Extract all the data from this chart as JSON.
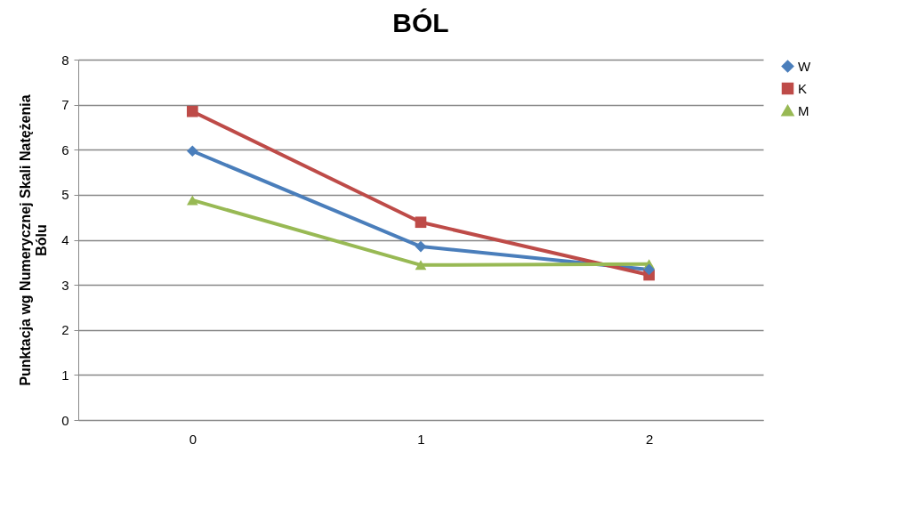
{
  "chart_data": {
    "type": "line",
    "title": "BÓL",
    "ylabel": "Punktacja wg Numerycznej Skali Natężenia Bólu",
    "categories": [
      "0",
      "1",
      "2"
    ],
    "series": [
      {
        "name": "W",
        "color": "#4a7ebb",
        "marker": "diamond",
        "values": [
          5.97,
          3.85,
          3.34
        ]
      },
      {
        "name": "K",
        "color": "#be4b48",
        "marker": "square",
        "values": [
          6.85,
          4.39,
          3.22
        ]
      },
      {
        "name": "M",
        "color": "#98b954",
        "marker": "triangle",
        "values": [
          4.88,
          3.44,
          3.46
        ]
      }
    ],
    "ylim": [
      0,
      8
    ],
    "yticks": [
      0,
      1,
      2,
      3,
      4,
      5,
      6,
      7,
      8
    ],
    "grid": "y",
    "legend": "right"
  }
}
